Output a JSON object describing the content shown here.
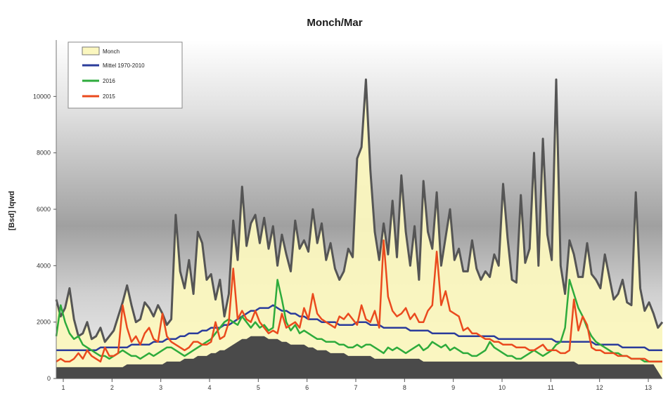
{
  "chart_data": {
    "type": "area",
    "title": "Monch/Mar",
    "xlabel": "",
    "ylabel": "[Bsd] lqwd",
    "ylim": [
      0,
      12000
    ],
    "y_ticks": [
      "0",
      "2000",
      "4000",
      "6000",
      "8000",
      "10000"
    ],
    "x_ticks": [
      "1",
      "2",
      "3",
      "4",
      "5",
      "6",
      "7",
      "8",
      "9",
      "10",
      "11",
      "12",
      "13"
    ],
    "grid": false,
    "legend_position": "top-left",
    "background": "gradient-gray",
    "colors": {
      "outer_fill": "#fbf7bf",
      "outer_line": "#555555",
      "base_fill": "#4a4a4a",
      "blue": "#2b3c9b",
      "green": "#2eab3c",
      "red": "#ea4a1e"
    },
    "series": [
      {
        "name": "Monch",
        "values": [
          2800,
          2200,
          2500,
          3200,
          2100,
          1500,
          1600,
          2000,
          1400,
          1500,
          1800,
          1300,
          1500,
          1700,
          2200,
          2700,
          3300,
          2600,
          2000,
          2100,
          2700,
          2500,
          2200,
          2600,
          2300,
          1900,
          2100,
          5800,
          3800,
          3200,
          4200,
          3000,
          5200,
          4800,
          3500,
          3700,
          2800,
          3500,
          2200,
          3000,
          5600,
          4200,
          6800,
          4700,
          5500,
          5800,
          4800,
          5700,
          4600,
          5400,
          4000,
          5100,
          4400,
          3800,
          5600,
          4600,
          4900,
          4500,
          6000,
          4800,
          5500,
          4200,
          4800,
          3900,
          3500,
          3800,
          4600,
          4300,
          7800,
          8200,
          10600,
          7400,
          5200,
          4200,
          5500,
          4400,
          6300,
          4300,
          7200,
          5200,
          4000,
          5400,
          3500,
          7000,
          5200,
          4600,
          6600,
          4000,
          5000,
          6000,
          4200,
          4600,
          3800,
          3800,
          4900,
          3900,
          3500,
          3800,
          3600,
          4400,
          4000,
          6900,
          5000,
          3500,
          3400,
          6500,
          4100,
          4600,
          8000,
          4000,
          8500,
          5100,
          4200,
          10600,
          4000,
          3000,
          4900,
          4400,
          3600,
          3600,
          4800,
          3700,
          3500,
          3200,
          4400,
          3600,
          2800,
          3000,
          3500,
          2700,
          2600,
          6600,
          3200,
          2400,
          2700,
          2300,
          1800,
          2000
        ]
      },
      {
        "name": "Mittel 1970-2010",
        "values": [
          1000,
          1000,
          1000,
          1000,
          1000,
          1000,
          1000,
          1000,
          1000,
          1000,
          1100,
          1100,
          1100,
          1100,
          1100,
          1100,
          1100,
          1200,
          1200,
          1200,
          1200,
          1200,
          1300,
          1300,
          1300,
          1400,
          1400,
          1400,
          1500,
          1500,
          1600,
          1600,
          1600,
          1700,
          1700,
          1800,
          1800,
          1800,
          1900,
          1900,
          2000,
          2100,
          2200,
          2300,
          2400,
          2400,
          2500,
          2500,
          2500,
          2600,
          2500,
          2400,
          2400,
          2300,
          2300,
          2200,
          2200,
          2100,
          2100,
          2100,
          2000,
          2000,
          2000,
          2000,
          1900,
          1900,
          1900,
          1900,
          2000,
          2000,
          2000,
          1900,
          1900,
          1900,
          1800,
          1800,
          1800,
          1800,
          1800,
          1800,
          1700,
          1700,
          1700,
          1700,
          1700,
          1600,
          1600,
          1600,
          1600,
          1600,
          1600,
          1500,
          1500,
          1500,
          1500,
          1500,
          1500,
          1500,
          1500,
          1500,
          1400,
          1400,
          1400,
          1400,
          1400,
          1400,
          1400,
          1400,
          1400,
          1400,
          1400,
          1400,
          1400,
          1300,
          1300,
          1300,
          1300,
          1300,
          1300,
          1300,
          1300,
          1300,
          1200,
          1200,
          1200,
          1200,
          1200,
          1200,
          1100,
          1100,
          1100,
          1100,
          1100,
          1100,
          1000,
          1000,
          1000,
          1000
        ]
      },
      {
        "name": "2016",
        "values": [
          1500,
          2600,
          2000,
          1600,
          1400,
          1500,
          1200,
          1100,
          1000,
          900,
          800,
          800,
          700,
          800,
          900,
          1000,
          900,
          800,
          800,
          700,
          800,
          900,
          800,
          900,
          1000,
          1100,
          1100,
          1000,
          900,
          800,
          900,
          1000,
          1100,
          1200,
          1300,
          1400,
          1600,
          1800,
          2000,
          2100,
          2000,
          1900,
          2200,
          2000,
          1800,
          2000,
          1800,
          1900,
          1700,
          1800,
          3500,
          2800,
          2000,
          1700,
          1900,
          1600,
          1700,
          1600,
          1500,
          1400,
          1400,
          1300,
          1300,
          1300,
          1200,
          1200,
          1100,
          1100,
          1200,
          1100,
          1200,
          1200,
          1100,
          1000,
          900,
          1100,
          1000,
          1100,
          1000,
          900,
          1000,
          1100,
          1200,
          1000,
          1100,
          1300,
          1200,
          1100,
          1200,
          1000,
          1100,
          1000,
          900,
          900,
          800,
          800,
          900,
          1000,
          1300,
          1100,
          1000,
          900,
          800,
          800,
          700,
          700,
          800,
          900,
          1000,
          900,
          800,
          900,
          1000,
          1200,
          1300,
          1800,
          3500,
          3000,
          2500,
          2200,
          1800,
          1500,
          1300,
          1200,
          1100,
          1000,
          900,
          900,
          800,
          800,
          700,
          700,
          700,
          600,
          600,
          600,
          600,
          600
        ]
      },
      {
        "name": "2015",
        "values": [
          600,
          700,
          600,
          600,
          700,
          900,
          700,
          1000,
          800,
          700,
          600,
          1100,
          800,
          800,
          900,
          2600,
          1800,
          1300,
          1500,
          1200,
          1600,
          1800,
          1400,
          1300,
          2300,
          1500,
          1300,
          1200,
          1100,
          1000,
          1100,
          1300,
          1300,
          1200,
          1200,
          1300,
          2000,
          1400,
          1500,
          2000,
          3900,
          2100,
          2400,
          2100,
          2000,
          2400,
          2000,
          1800,
          1600,
          1700,
          1600,
          2300,
          1800,
          1900,
          2000,
          1800,
          2500,
          2100,
          3000,
          2300,
          2100,
          2000,
          1900,
          1800,
          2200,
          2100,
          2300,
          2100,
          1900,
          2600,
          2100,
          2000,
          2400,
          1800,
          4900,
          2900,
          2400,
          2200,
          2300,
          2500,
          2100,
          2300,
          2000,
          2000,
          2400,
          2600,
          4500,
          2600,
          3100,
          2400,
          2300,
          2200,
          1700,
          1800,
          1600,
          1600,
          1500,
          1400,
          1400,
          1300,
          1300,
          1200,
          1200,
          1200,
          1100,
          1100,
          1100,
          1000,
          1000,
          1100,
          1200,
          1000,
          1000,
          1000,
          900,
          900,
          1000,
          2800,
          1700,
          2200,
          1900,
          1100,
          1000,
          1000,
          900,
          900,
          900,
          800,
          800,
          800,
          700,
          700,
          700,
          700,
          600,
          600,
          600,
          600
        ]
      },
      {
        "name": "",
        "values": [
          400,
          400,
          400,
          400,
          400,
          400,
          400,
          400,
          400,
          400,
          400,
          400,
          400,
          400,
          400,
          400,
          500,
          500,
          500,
          500,
          500,
          500,
          500,
          500,
          500,
          600,
          600,
          600,
          600,
          700,
          700,
          700,
          800,
          800,
          800,
          900,
          900,
          1000,
          1000,
          1100,
          1200,
          1300,
          1400,
          1400,
          1500,
          1500,
          1500,
          1500,
          1400,
          1400,
          1400,
          1300,
          1300,
          1200,
          1200,
          1200,
          1200,
          1100,
          1100,
          1000,
          1000,
          1000,
          900,
          900,
          900,
          900,
          800,
          800,
          800,
          800,
          800,
          800,
          700,
          700,
          700,
          700,
          700,
          700,
          700,
          700,
          700,
          700,
          700,
          600,
          600,
          600,
          600,
          600,
          600,
          600,
          600,
          600,
          600,
          600,
          600,
          600,
          600,
          600,
          600,
          600,
          600,
          600,
          600,
          600,
          600,
          600,
          600,
          600,
          600,
          600,
          600,
          600,
          600,
          600,
          600,
          600,
          600,
          600,
          500,
          500,
          500,
          500,
          500,
          500,
          500,
          500,
          500,
          500,
          500,
          500,
          500,
          500,
          500,
          500,
          500,
          500
        ]
      }
    ]
  }
}
